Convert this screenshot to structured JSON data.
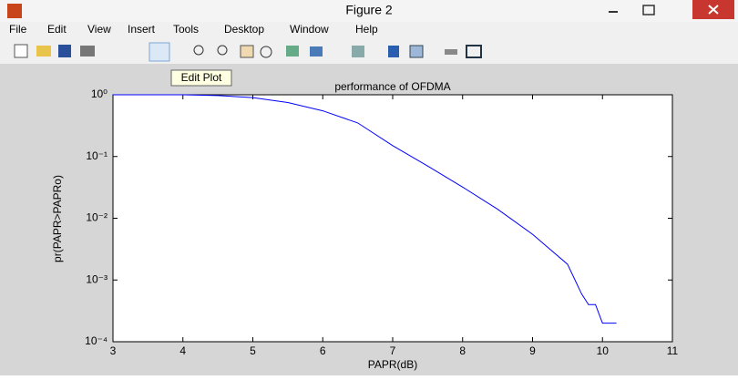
{
  "window": {
    "title": "Figure 2",
    "menu": [
      "File",
      "Edit",
      "View",
      "Insert",
      "Tools",
      "Desktop",
      "Window",
      "Help"
    ],
    "tooltip": "Edit Plot"
  },
  "chart_data": {
    "type": "line",
    "title": "performance of OFDMA",
    "xlabel": "PAPR(dB)",
    "ylabel": "pr(PAPR>PAPRo)",
    "x": [
      3,
      4,
      4.5,
      5,
      5.5,
      6,
      6.5,
      7,
      7.5,
      8,
      8.5,
      9,
      9.5,
      9.7,
      9.8,
      9.9,
      10,
      10.2
    ],
    "series": [
      {
        "name": "pr(PAPR>PAPRo)",
        "color": "#0000ff",
        "values": [
          1,
          1,
          0.97,
          0.9,
          0.75,
          0.55,
          0.35,
          0.15,
          0.07,
          0.032,
          0.014,
          0.0055,
          0.0018,
          0.0006,
          0.0004,
          0.0004,
          0.0002,
          0.0002
        ]
      }
    ],
    "xlim": [
      3,
      11
    ],
    "xticks": [
      3,
      4,
      5,
      6,
      7,
      8,
      9,
      10,
      11
    ],
    "ylim": [
      0.0001,
      1
    ],
    "yscale": "log",
    "yticks": [
      {
        "value": 1,
        "label": "10⁰"
      },
      {
        "value": 0.1,
        "label": "10⁻¹"
      },
      {
        "value": 0.01,
        "label": "10⁻²"
      },
      {
        "value": 0.001,
        "label": "10⁻³"
      },
      {
        "value": 0.0001,
        "label": "10⁻⁴"
      }
    ],
    "grid": false
  }
}
